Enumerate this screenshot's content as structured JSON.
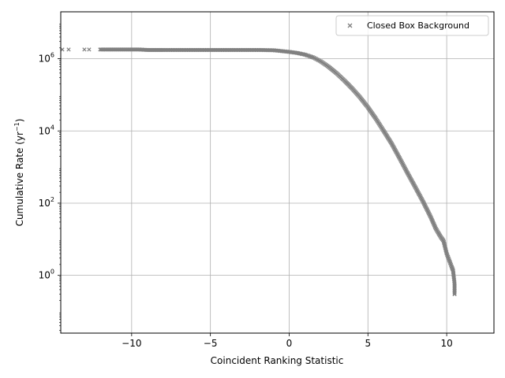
{
  "chart_data": {
    "type": "scatter",
    "xlabel": "Coincident Ranking Statistic",
    "ylabel_main": "Cumulative Rate (yr",
    "ylabel_sup": "−1",
    "ylabel_end": ")",
    "xlim": [
      -14.5,
      13
    ],
    "ylim_log10": [
      -1.6,
      7.3
    ],
    "yscale": "log",
    "grid": true,
    "legend_position": "top-right",
    "marker": "x",
    "marker_color": "#808080",
    "x_ticks": [
      {
        "value": -10,
        "label": "−10"
      },
      {
        "value": -5,
        "label": "−5"
      },
      {
        "value": 0,
        "label": "0"
      },
      {
        "value": 5,
        "label": "5"
      },
      {
        "value": 10,
        "label": "10"
      }
    ],
    "y_ticks": [
      {
        "value_log10": 0,
        "base": "10",
        "exp": "0"
      },
      {
        "value_log10": 2,
        "base": "10",
        "exp": "2"
      },
      {
        "value_log10": 4,
        "base": "10",
        "exp": "4"
      },
      {
        "value_log10": 6,
        "base": "10",
        "exp": "6"
      }
    ],
    "series": [
      {
        "name": "Closed Box Background",
        "points": [
          [
            -14.4,
            1800000
          ],
          [
            -14.0,
            1800000
          ],
          [
            -13.0,
            1800000
          ],
          [
            -12.7,
            1800000
          ],
          [
            -12.0,
            1800000
          ],
          [
            -11.8,
            1800000
          ],
          [
            -11.5,
            1800000
          ],
          [
            -11.0,
            1800000
          ],
          [
            -10.5,
            1800000
          ],
          [
            -10.0,
            1800000
          ],
          [
            -9.5,
            1800000
          ],
          [
            -9.0,
            1750000
          ],
          [
            -8.5,
            1750000
          ],
          [
            -8.0,
            1750000
          ],
          [
            -7.0,
            1750000
          ],
          [
            -6.0,
            1750000
          ],
          [
            -5.0,
            1750000
          ],
          [
            -4.0,
            1750000
          ],
          [
            -3.0,
            1750000
          ],
          [
            -2.0,
            1750000
          ],
          [
            -1.0,
            1720000
          ],
          [
            0.0,
            1550000
          ],
          [
            0.5,
            1450000
          ],
          [
            1.0,
            1300000
          ],
          [
            1.5,
            1100000
          ],
          [
            2.0,
            850000
          ],
          [
            2.5,
            600000
          ],
          [
            3.0,
            400000
          ],
          [
            3.5,
            250000
          ],
          [
            4.0,
            150000
          ],
          [
            4.5,
            85000
          ],
          [
            5.0,
            45000
          ],
          [
            5.5,
            22000
          ],
          [
            6.0,
            10000
          ],
          [
            6.5,
            4500
          ],
          [
            7.0,
            1800
          ],
          [
            7.5,
            700
          ],
          [
            8.0,
            280
          ],
          [
            8.5,
            110
          ],
          [
            9.0,
            40
          ],
          [
            9.3,
            20
          ],
          [
            9.6,
            12
          ],
          [
            9.8,
            9
          ],
          [
            10.0,
            4
          ],
          [
            10.3,
            1.8
          ],
          [
            10.4,
            1.4
          ],
          [
            10.45,
            0.9
          ],
          [
            10.5,
            0.6
          ],
          [
            10.5,
            0.3
          ]
        ]
      }
    ]
  }
}
